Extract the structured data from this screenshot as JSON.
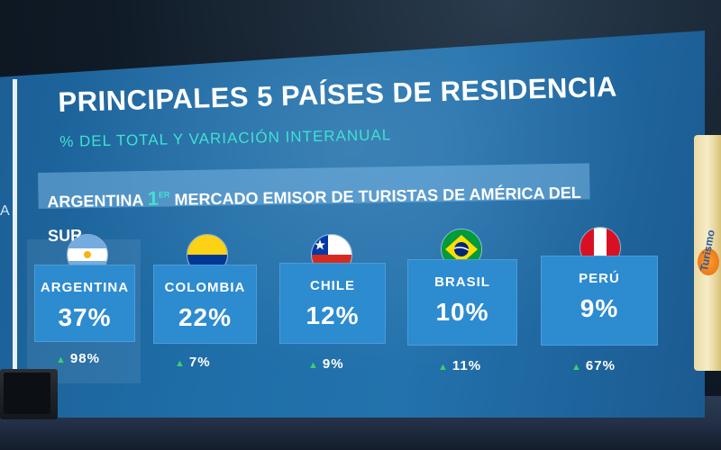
{
  "slide": {
    "title": "PRINCIPALES 5  PAÍSES DE RESIDENCIA",
    "subtitle": "% DEL TOTAL Y VARIACIÓN INTERANUAL",
    "side_letter": "A",
    "banner": {
      "country": "ARGENTINA",
      "rank_number": "1",
      "rank_suffix": "ER",
      "text": "MERCADO EMISOR DE TURISTAS DE AMÉRICA DEL SUR"
    },
    "countries": [
      {
        "name": "ARGENTINA",
        "share": "37%",
        "variation": "98%"
      },
      {
        "name": "COLOMBIA",
        "share": "22%",
        "variation": "7%"
      },
      {
        "name": "CHILE",
        "share": "12%",
        "variation": "9%"
      },
      {
        "name": "BRASIL",
        "share": "10%",
        "variation": "11%"
      },
      {
        "name": "PERÚ",
        "share": "9%",
        "variation": "67%"
      }
    ],
    "variation_up_symbol": "▲"
  },
  "background": {
    "right_banner_text": "Turismo"
  },
  "colors": {
    "screen_blue": "#1f6ea8",
    "card_blue": "#2d8bd0",
    "subtitle_teal": "#41e1cf",
    "up_arrow_green": "#36d36a"
  }
}
